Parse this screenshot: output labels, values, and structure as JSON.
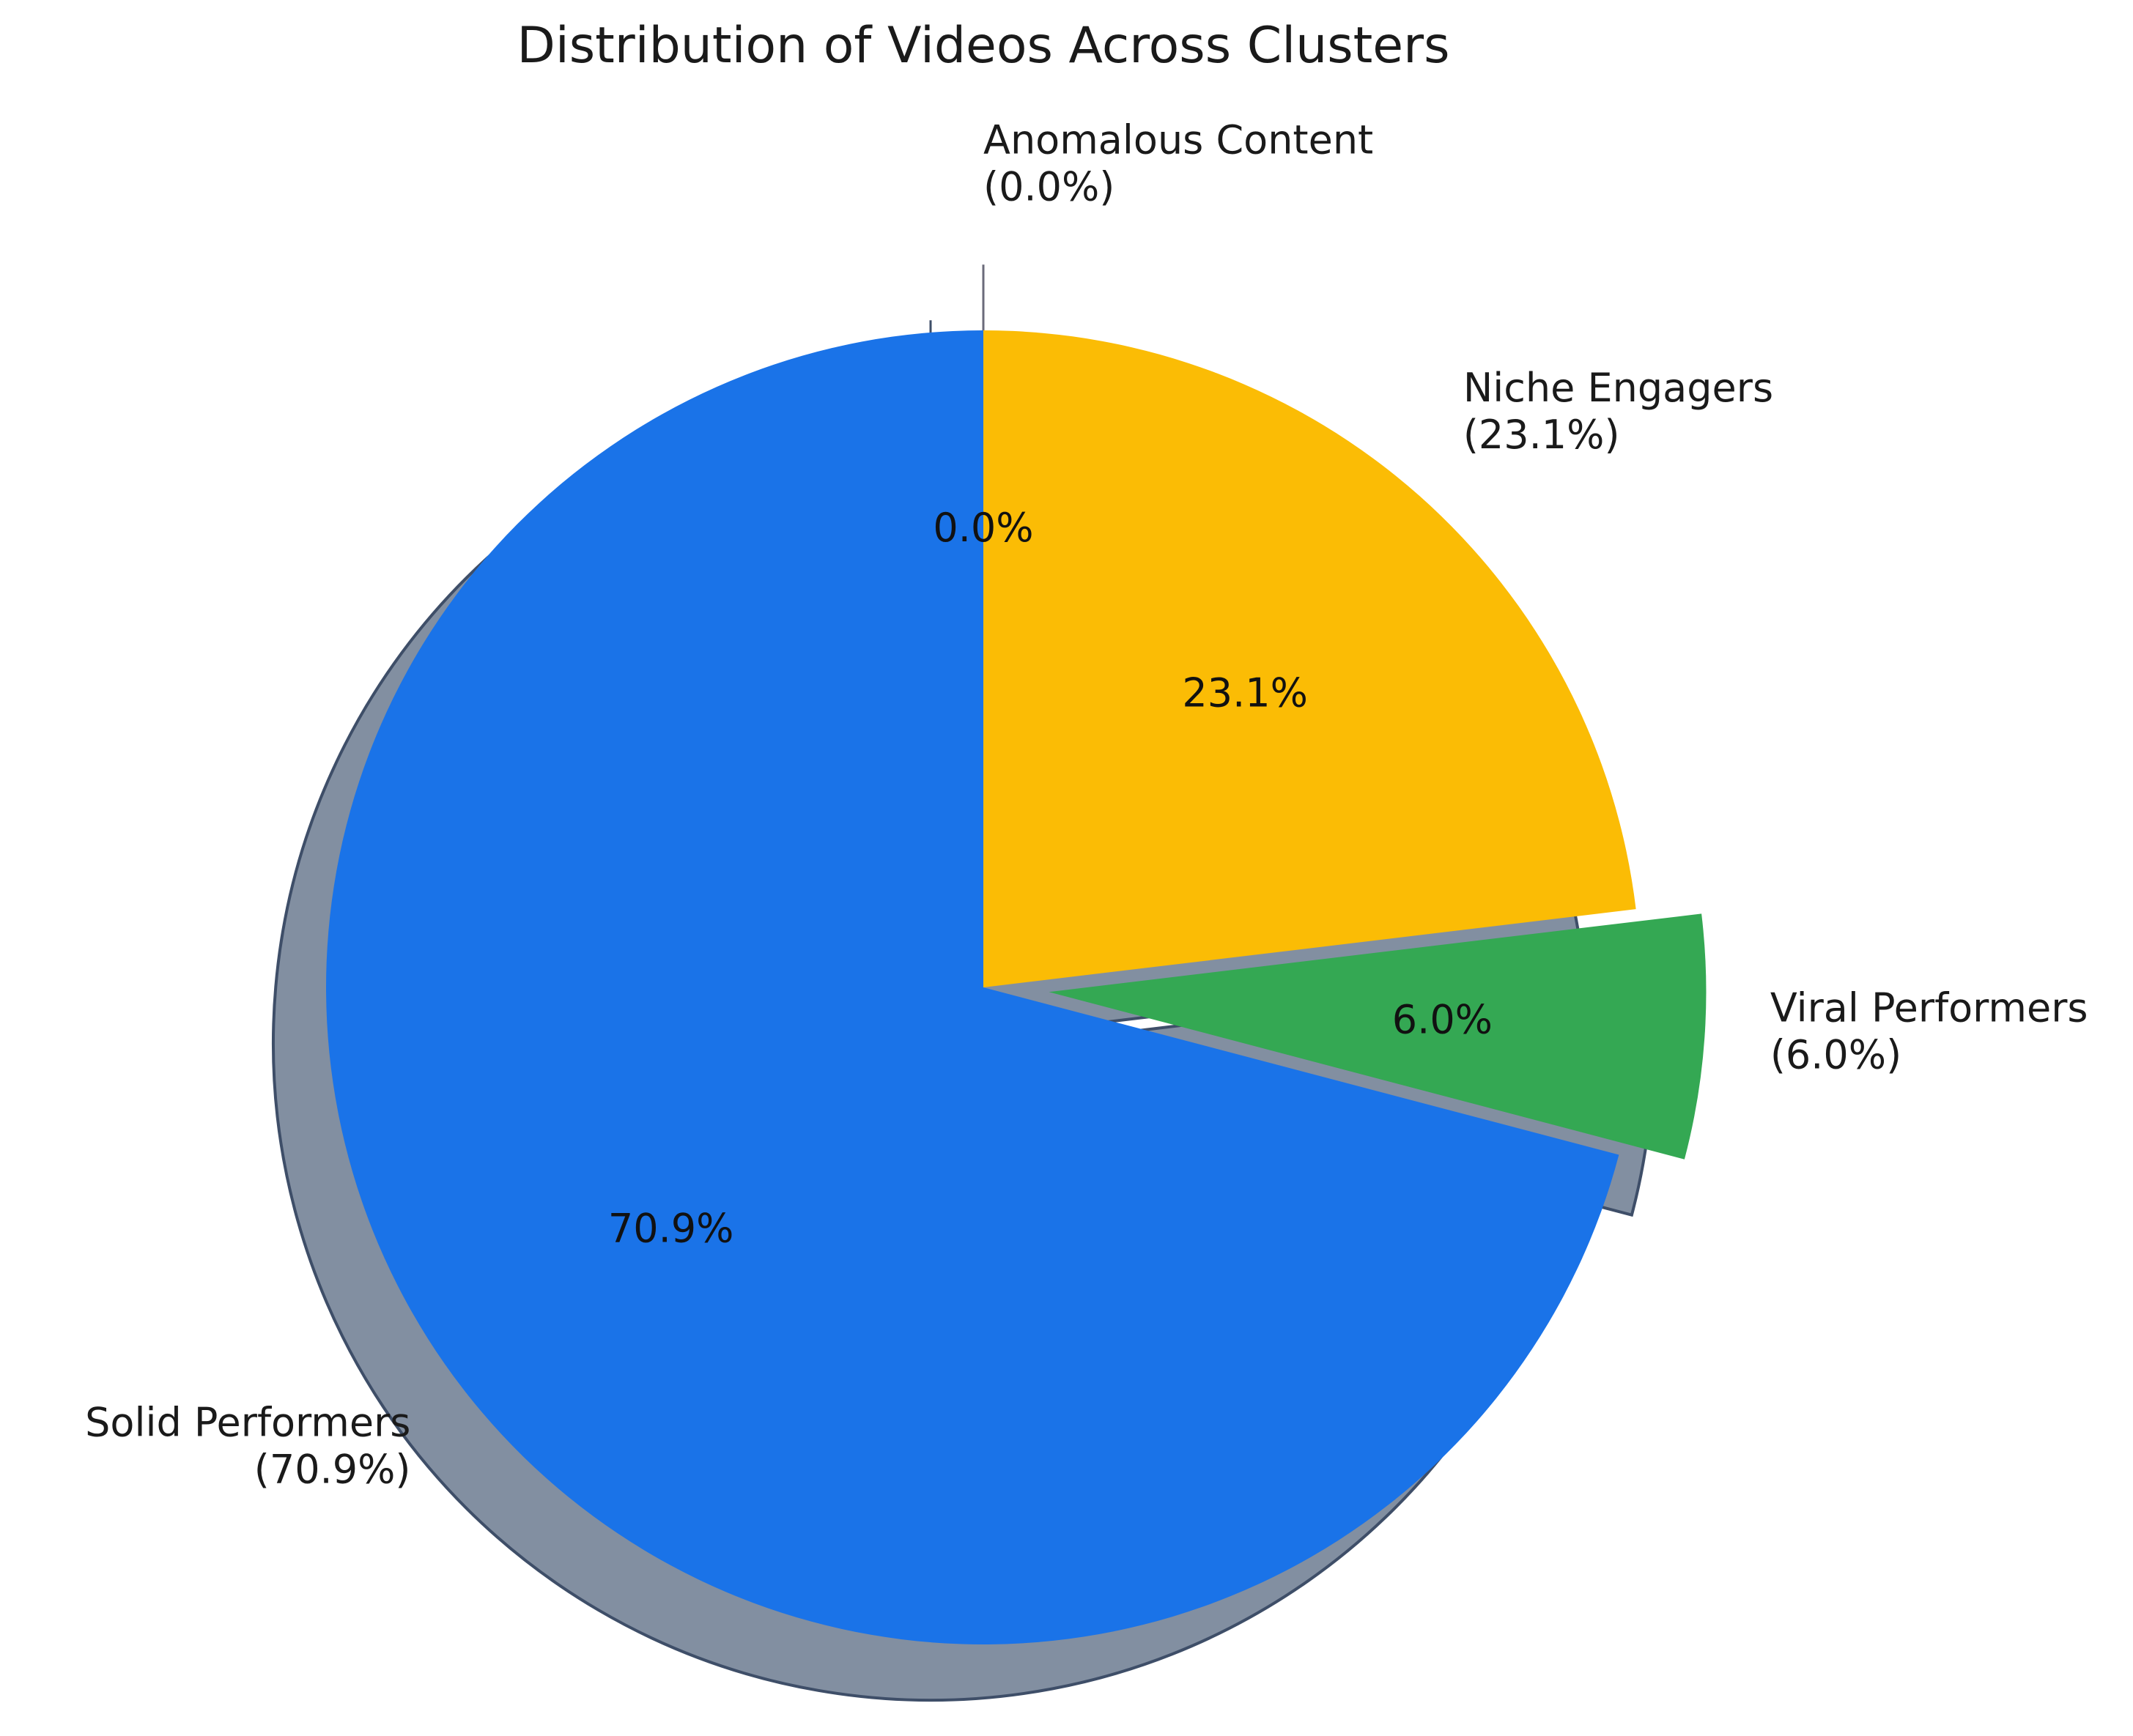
{
  "chart_data": {
    "type": "pie",
    "title": "Distribution of Videos Across Clusters",
    "slices": [
      {
        "name": "Anomalous Content",
        "value": 0.0,
        "pct_label": "0.0%",
        "legend_pct": "(0.0%)",
        "color": "#9aa0a6"
      },
      {
        "name": "Niche Engagers",
        "value": 23.1,
        "pct_label": "23.1%",
        "legend_pct": "(23.1%)",
        "color": "#fbbc05"
      },
      {
        "name": "Viral Performers",
        "value": 6.0,
        "pct_label": "6.0%",
        "legend_pct": "(6.0%)",
        "color": "#34a853"
      },
      {
        "name": "Solid Performers",
        "value": 70.9,
        "pct_label": "70.9%",
        "legend_pct": "(70.9%)",
        "color": "#1a73e8"
      }
    ],
    "start_angle_deg": 90,
    "direction": "clockwise",
    "exploded": [
      "Viral Performers",
      "Anomalous Content"
    ],
    "shadow": true,
    "shadow_color": "#5f6f86"
  }
}
